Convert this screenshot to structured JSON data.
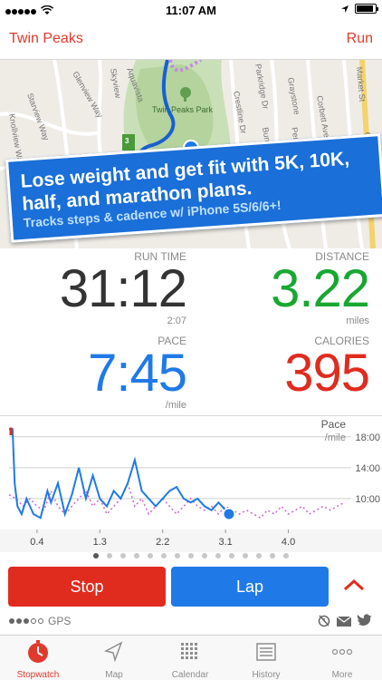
{
  "status_bar": {
    "time": "11:07 AM",
    "carrier_dots": 5
  },
  "nav": {
    "title": "Twin Peaks",
    "action": "Run"
  },
  "map": {
    "park_label": "Twin Peaks Park",
    "route_marker": "3 mi",
    "street_labels": [
      "Starview Way",
      "Knollview Way",
      "Skyview",
      "Glenview Way",
      "Aquavista",
      "Crestline Dr",
      "Parkridge Dr",
      "Burnett",
      "Graystone",
      "Perego",
      "Corbett Ave",
      "Market St",
      "Gr"
    ]
  },
  "promo": {
    "headline": "Lose weight and get fit with 5K, 10K, half, and marathon plans.",
    "subline": "Tracks steps & cadence w/ iPhone 5S/6/6+!"
  },
  "stats": {
    "run_time": {
      "label": "RUN TIME",
      "value": "31:12",
      "sub": "2:07"
    },
    "distance": {
      "label": "DISTANCE",
      "value": "3.22",
      "sub": "miles"
    },
    "pace": {
      "label": "PACE",
      "value": "7:45",
      "sub": "/mile"
    },
    "calories": {
      "label": "CALORIES",
      "value": "395"
    }
  },
  "colors": {
    "red": "#e02b1f",
    "blue": "#1f7ae8",
    "green": "#18a832",
    "dark": "#333333",
    "pink_dotted": "#cc66cc"
  },
  "chart_data": {
    "type": "line",
    "title": "Pace",
    "ylabel": "/mile",
    "x_ticks": [
      "0.4",
      "1.3",
      "2.2",
      "3.1",
      "4.0"
    ],
    "y_ticks": [
      "18:00",
      "14:00",
      "10:00"
    ],
    "xlim": [
      0,
      4.9
    ],
    "ylim_minutes": [
      6,
      19.5
    ],
    "series": [
      {
        "values_x": [
          0.0,
          0.05,
          0.08,
          0.12,
          0.18,
          0.25,
          0.35,
          0.45,
          0.55,
          0.6,
          0.7,
          0.8,
          0.9,
          1.0,
          1.1,
          1.2,
          1.3,
          1.4,
          1.5,
          1.6,
          1.7,
          1.8,
          1.9,
          2.0,
          2.1,
          2.2,
          2.3,
          2.4,
          2.5,
          2.6,
          2.7,
          2.8,
          2.9,
          3.0,
          3.1,
          3.15
        ],
        "values_y": [
          19,
          19,
          12,
          9,
          8,
          10,
          8,
          7.5,
          11,
          9.5,
          12,
          8,
          10.5,
          14,
          10,
          13,
          10,
          9,
          11,
          10,
          12,
          15,
          11,
          10,
          9,
          10,
          11,
          11.5,
          10,
          9.5,
          10,
          9,
          8.5,
          9.5,
          8.5,
          8
        ]
      },
      {
        "values_x": [
          0.0,
          0.1,
          0.2,
          0.3,
          0.4,
          0.5,
          0.6,
          0.7,
          0.8,
          0.9,
          1.0,
          1.1,
          1.2,
          1.3,
          1.4,
          1.5,
          1.6,
          1.7,
          1.8,
          1.9,
          2.0,
          2.1,
          2.2,
          2.3,
          2.4,
          2.5,
          2.6,
          2.7,
          2.8,
          2.9,
          3.0,
          3.1,
          3.2,
          3.3,
          3.4,
          3.5,
          3.6,
          3.7,
          3.8,
          3.9,
          4.0,
          4.1,
          4.2,
          4.3,
          4.4,
          4.5,
          4.6,
          4.7,
          4.8
        ],
        "values_y": [
          10.5,
          10,
          9,
          10,
          9,
          8.5,
          11,
          9,
          8,
          9,
          10,
          11,
          9,
          10,
          8,
          9,
          10,
          12,
          9,
          10,
          8,
          9,
          10,
          9,
          8,
          9,
          10,
          9,
          8.5,
          9,
          8,
          9,
          8.5,
          8,
          8.5,
          8,
          7.5,
          8.5,
          8,
          9,
          8,
          8.5,
          9,
          8,
          8.5,
          9,
          8.5,
          9,
          9.5
        ]
      }
    ],
    "current_point": {
      "x": 3.15,
      "y": 8
    }
  },
  "controls": {
    "stop_label": "Stop",
    "lap_label": "Lap"
  },
  "gps": {
    "label": "GPS",
    "strength_dots": 5,
    "strength_filled": 3
  },
  "page_dots": {
    "count": 15,
    "active": 0
  },
  "tabs": [
    {
      "label": "Stopwatch",
      "icon": "stopwatch-icon",
      "active": true
    },
    {
      "label": "Map",
      "icon": "map-arrow-icon",
      "active": false
    },
    {
      "label": "Calendar",
      "icon": "calendar-icon",
      "active": false
    },
    {
      "label": "History",
      "icon": "history-icon",
      "active": false
    },
    {
      "label": "More",
      "icon": "more-icon",
      "active": false
    }
  ]
}
